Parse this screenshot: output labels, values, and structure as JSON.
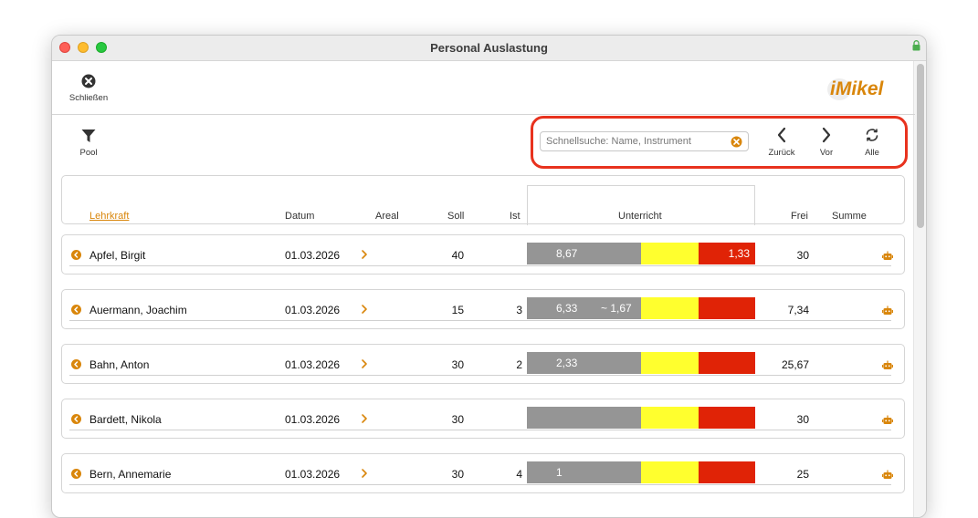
{
  "window": {
    "title": "Personal Auslastung"
  },
  "toolbar": {
    "close_label": "Schließen",
    "pool_label": "Pool",
    "logo_text": "iMikel",
    "search_placeholder": "Schnellsuche: Name, Instrument",
    "back_label": "Zurück",
    "forward_label": "Vor",
    "all_label": "Alle"
  },
  "table": {
    "headers": {
      "lehrkraft": "Lehrkraft",
      "datum": "Datum",
      "areal": "Areal",
      "soll": "Soll",
      "ist": "Ist",
      "unterricht": "Unterricht",
      "frei": "Frei",
      "summe": "Summe"
    },
    "rows": [
      {
        "name": "Apfel, Birgit",
        "datum": "01.03.2026",
        "soll": "40",
        "ist": "",
        "gray_value": "8,67",
        "gray_extra": "",
        "red_value": "1,33",
        "frei": "30"
      },
      {
        "name": "Auermann, Joachim",
        "datum": "01.03.2026",
        "soll": "15",
        "ist": "3",
        "gray_value": "6,33",
        "gray_extra": "~ 1,67",
        "red_value": "",
        "frei": "7,34"
      },
      {
        "name": "Bahn, Anton",
        "datum": "01.03.2026",
        "soll": "30",
        "ist": "2",
        "gray_value": "2,33",
        "gray_extra": "",
        "red_value": "",
        "frei": "25,67"
      },
      {
        "name": "Bardett, Nikola",
        "datum": "01.03.2026",
        "soll": "30",
        "ist": "",
        "gray_value": "",
        "gray_extra": "",
        "red_value": "",
        "frei": "30"
      },
      {
        "name": "Bern, Annemarie",
        "datum": "01.03.2026",
        "soll": "30",
        "ist": "4",
        "gray_value": "1",
        "gray_extra": "",
        "red_value": "",
        "frei": "25"
      }
    ]
  },
  "colors": {
    "accent": "#d9860b",
    "highlight": "#e8321e",
    "bar_gray": "#959595",
    "bar_yellow": "#ffff2e",
    "bar_red": "#e02306"
  },
  "icons": {
    "close": "close-circle-icon",
    "pool": "filter-icon",
    "back": "chevron-left-icon",
    "forward": "chevron-right-icon",
    "all": "refresh-icon",
    "row": "arrow-circle-left-icon",
    "summe": "robot-icon"
  }
}
